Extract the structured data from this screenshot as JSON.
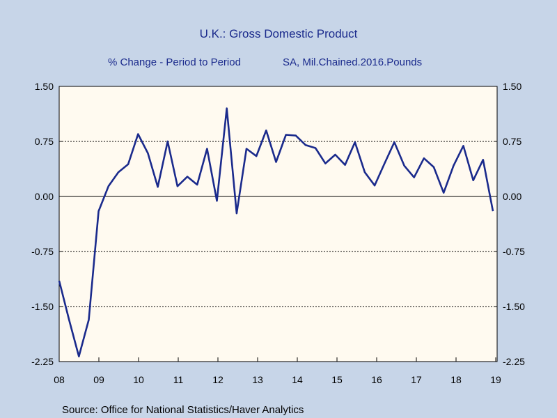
{
  "chart_data": {
    "type": "line",
    "title": "U.K.: Gross Domestic Product",
    "subtitle_left": "% Change - Period to Period",
    "subtitle_right": "SA, Mil.Chained.2016.Pounds",
    "source": "Source:  Office for National Statistics/Haver Analytics",
    "xlabel": "",
    "ylabel": "",
    "ylim": [
      -2.25,
      1.5
    ],
    "y_ticks": [
      "1.50",
      "0.75",
      "0.00",
      "-0.75",
      "-1.50",
      "-2.25"
    ],
    "x_ticks": [
      "08",
      "09",
      "10",
      "11",
      "12",
      "13",
      "14",
      "15",
      "16",
      "17",
      "18",
      "19"
    ],
    "grid": "horizontal dotted",
    "colors": {
      "line": "#1a2a8c",
      "plot_background": "#fffaf0",
      "page_background": "#c7d5e8",
      "title": "#1a2a8c"
    },
    "series": [
      {
        "values": [
          -1.15,
          -1.68,
          -2.18,
          -1.68,
          -0.2,
          0.14,
          0.33,
          0.44,
          0.85,
          0.59,
          0.13,
          0.75,
          0.14,
          0.27,
          0.16,
          0.65,
          -0.06,
          1.2,
          -0.23,
          0.65,
          0.55,
          0.9,
          0.47,
          0.84,
          0.83,
          0.7,
          0.66,
          0.45,
          0.57,
          0.43,
          0.74,
          0.33,
          0.15,
          0.45,
          0.74,
          0.42,
          0.26,
          0.52,
          0.4,
          0.05,
          0.42,
          0.69,
          0.22,
          0.5,
          -0.2
        ]
      }
    ]
  }
}
